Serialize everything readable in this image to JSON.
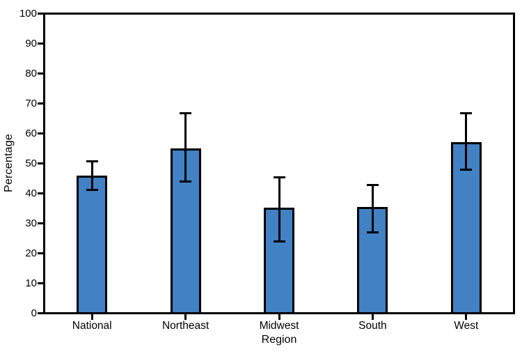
{
  "chart_data": {
    "type": "bar",
    "title": "",
    "xlabel": "Region",
    "ylabel": "Percentage",
    "categories": [
      "National",
      "Northeast",
      "Midwest",
      "South",
      "West"
    ],
    "values": [
      46,
      55,
      35.2,
      35.4,
      57.2
    ],
    "error_low": [
      41.2,
      43.8,
      23.8,
      26.8,
      47.9
    ],
    "error_high": [
      50.7,
      66.8,
      45.2,
      42.8,
      66.9
    ],
    "ylim": [
      0,
      100
    ],
    "yticks": [
      0,
      10,
      20,
      30,
      40,
      50,
      60,
      70,
      80,
      90,
      100
    ],
    "grid": false,
    "legend": false,
    "bar_color": "#4281c4",
    "bar_border_color": "#000000",
    "error_bar_color": "#000000",
    "axis_color": "#000000",
    "background_color": "#ffffff"
  }
}
